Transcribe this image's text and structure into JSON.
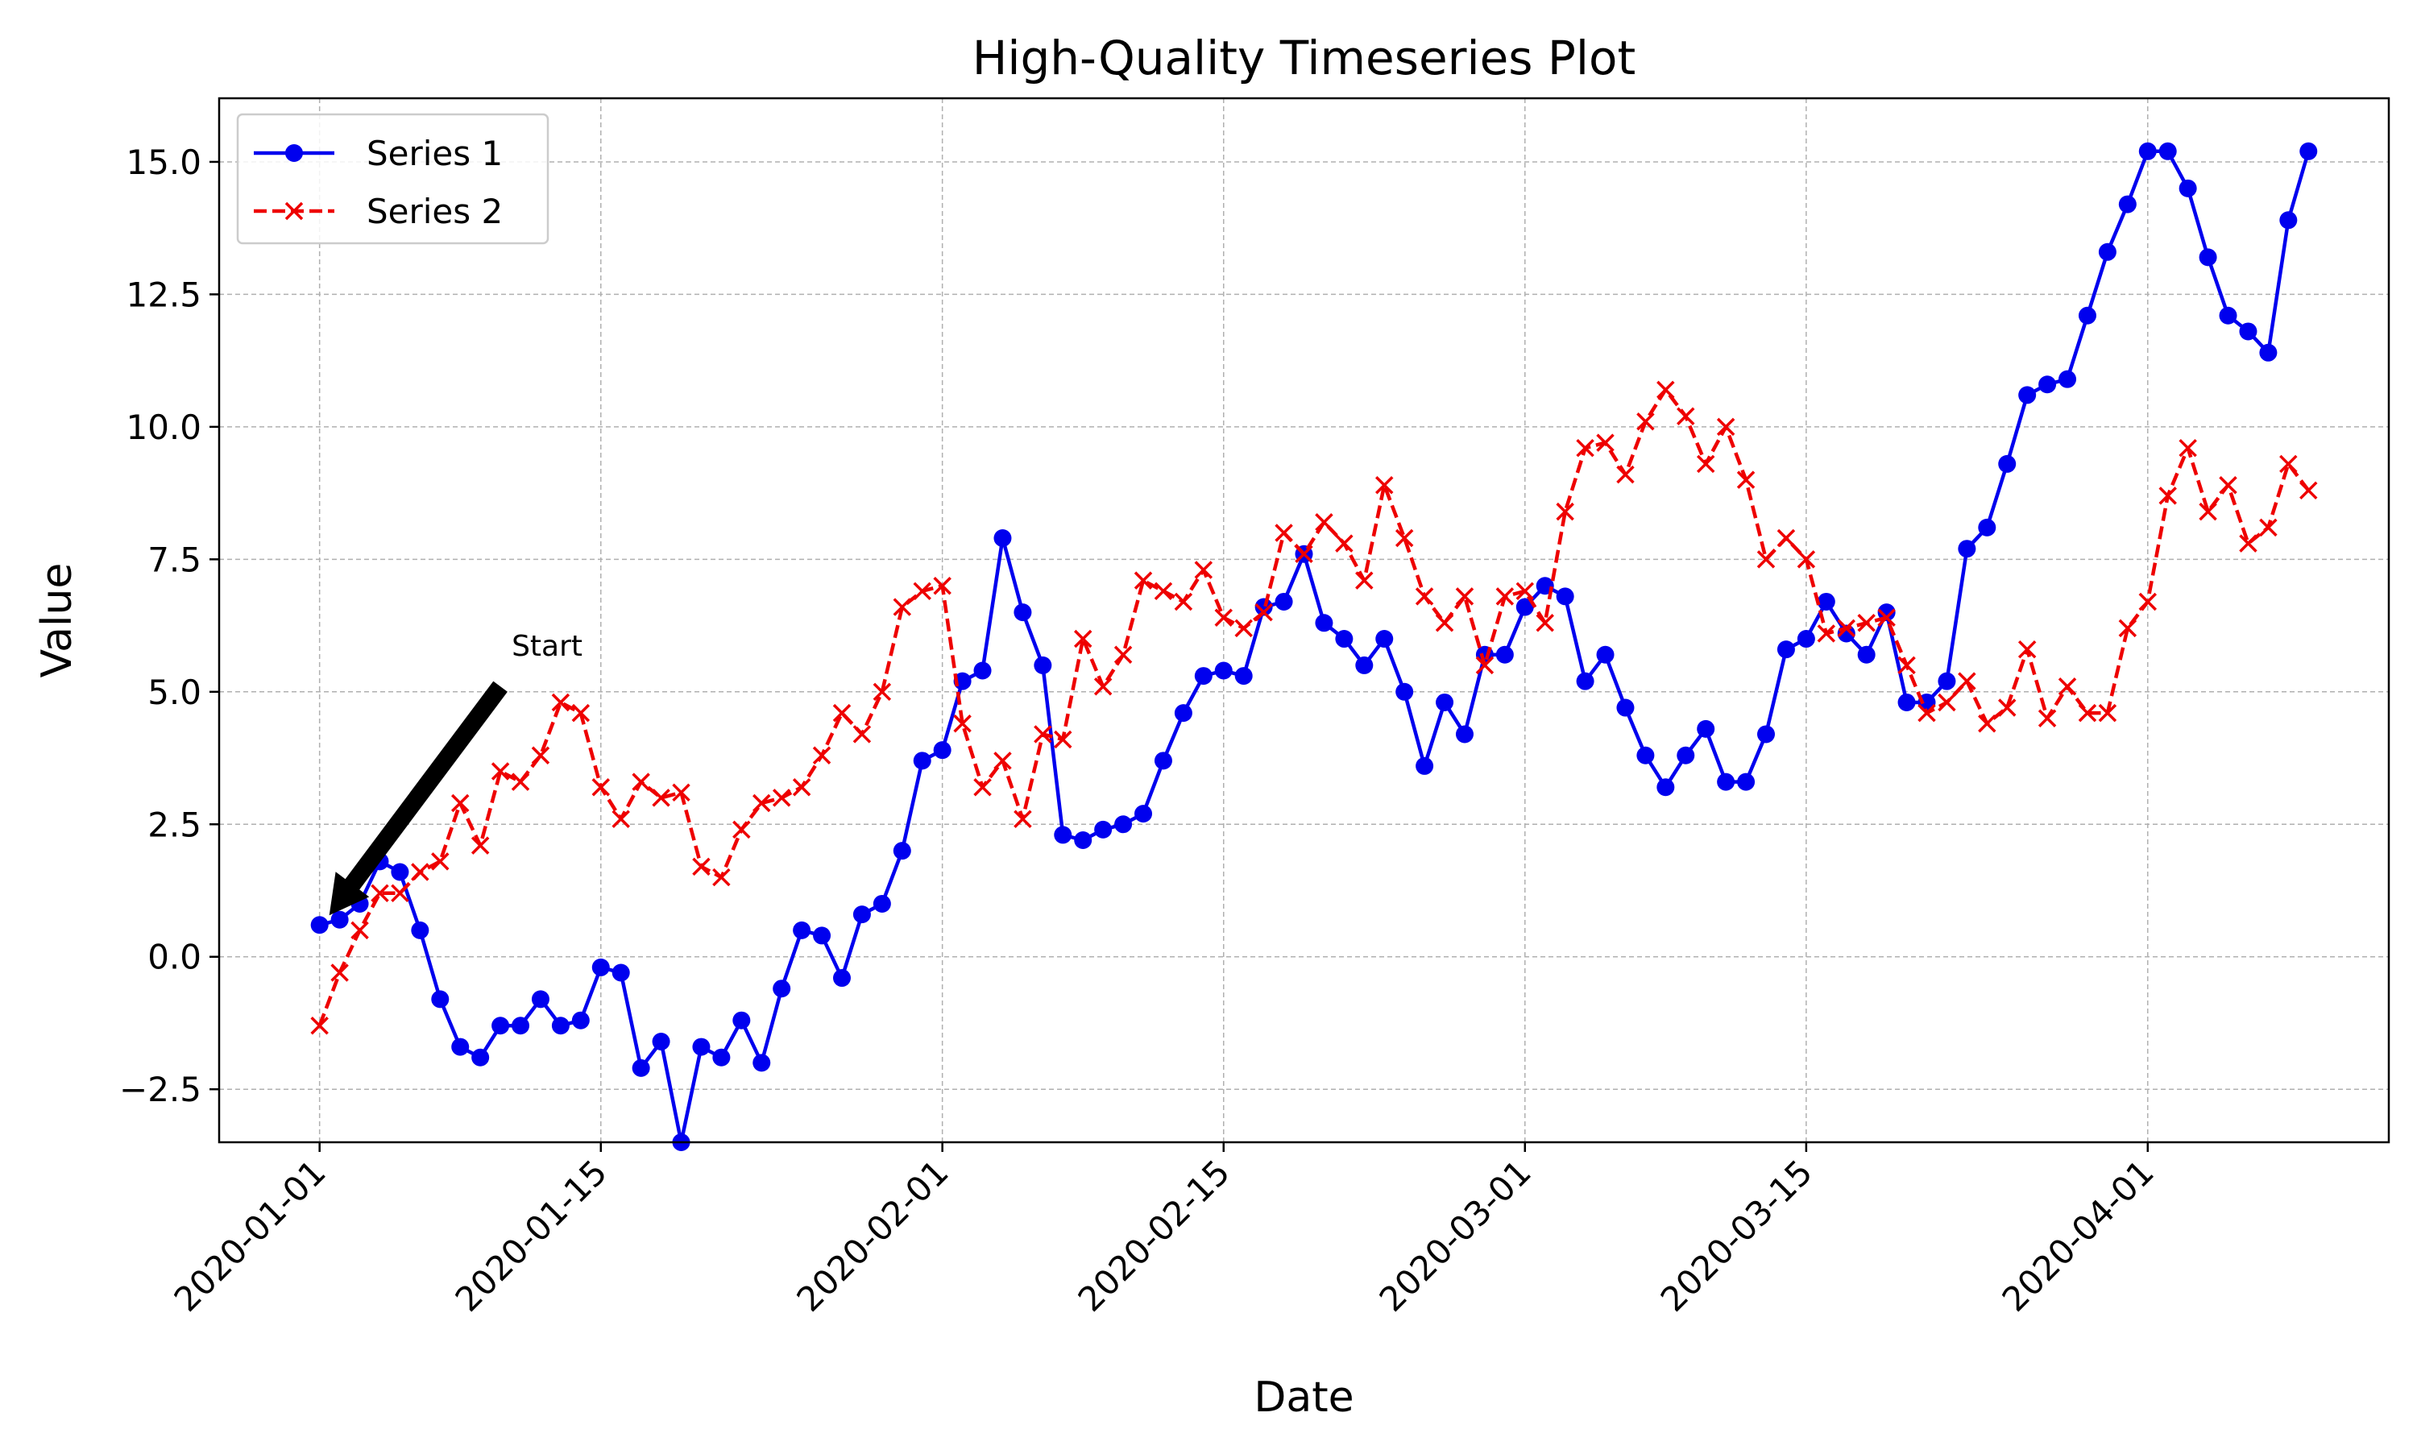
{
  "chart_data": {
    "type": "line",
    "title": "High-Quality Timeseries Plot",
    "xlabel": "Date",
    "ylabel": "Value",
    "x_start": "2020-01-01",
    "x_end": "2020-04-08",
    "xlim": [
      "2019-12-27",
      "2020-04-13"
    ],
    "ylim": [
      -3.5,
      16.2
    ],
    "x_ticks": [
      "2020-01-01",
      "2020-01-15",
      "2020-02-01",
      "2020-02-15",
      "2020-03-01",
      "2020-03-15",
      "2020-04-01"
    ],
    "y_ticks": [
      -2.5,
      0.0,
      2.5,
      5.0,
      7.5,
      10.0,
      12.5,
      15.0
    ],
    "y_tick_labels": [
      "−2.5",
      "0.0",
      "2.5",
      "5.0",
      "7.5",
      "10.0",
      "12.5",
      "15.0"
    ],
    "grid": true,
    "legend_position": "upper-left",
    "annotations": [
      {
        "text": "Start",
        "points_to": {
          "x": "2020-01-01",
          "y": 0.6
        }
      }
    ],
    "series": [
      {
        "name": "Series 1",
        "color": "#0000ee",
        "line_style": "solid",
        "marker": "circle",
        "values": [
          0.6,
          0.7,
          1.0,
          1.8,
          1.6,
          0.5,
          -0.8,
          -1.7,
          -1.9,
          -1.3,
          -1.3,
          -0.8,
          -1.3,
          -1.2,
          -0.2,
          -0.3,
          -2.1,
          -1.6,
          -3.5,
          -1.7,
          -1.9,
          -1.2,
          -2.0,
          -0.6,
          0.5,
          0.4,
          -0.4,
          0.8,
          1.0,
          2.0,
          3.7,
          3.9,
          5.2,
          5.4,
          7.9,
          6.5,
          5.5,
          2.3,
          2.2,
          2.4,
          2.5,
          2.7,
          3.7,
          4.6,
          5.3,
          5.4,
          5.3,
          6.6,
          6.7,
          7.6,
          6.3,
          6.0,
          5.5,
          6.0,
          5.0,
          3.6,
          4.8,
          4.2,
          5.7,
          5.7,
          6.6,
          7.0,
          6.8,
          5.2,
          5.7,
          4.7,
          3.8,
          3.2,
          3.8,
          4.3,
          3.3,
          3.3,
          4.2,
          5.8,
          6.0,
          6.7,
          6.1,
          5.7,
          6.5,
          4.8,
          4.8,
          5.2,
          7.7,
          8.1,
          9.3,
          10.6,
          10.8,
          10.9,
          12.1,
          13.3,
          14.2,
          15.2,
          15.2,
          14.5,
          13.2,
          12.1,
          11.8,
          11.4,
          13.9,
          15.2
        ]
      },
      {
        "name": "Series 2",
        "color": "#ee0000",
        "line_style": "dashed",
        "marker": "x",
        "values": [
          -1.3,
          -0.3,
          0.5,
          1.2,
          1.2,
          1.6,
          1.8,
          2.9,
          2.1,
          3.5,
          3.3,
          3.8,
          4.8,
          4.6,
          3.2,
          2.6,
          3.3,
          3.0,
          3.1,
          1.7,
          1.5,
          2.4,
          2.9,
          3.0,
          3.2,
          3.8,
          4.6,
          4.2,
          5.0,
          6.6,
          6.9,
          7.0,
          4.4,
          3.2,
          3.7,
          2.6,
          4.2,
          4.1,
          6.0,
          5.1,
          5.7,
          7.1,
          6.9,
          6.7,
          7.3,
          6.4,
          6.2,
          6.5,
          8.0,
          7.6,
          8.2,
          7.8,
          7.1,
          8.9,
          7.9,
          6.8,
          6.3,
          6.8,
          5.5,
          6.8,
          6.9,
          6.3,
          8.4,
          9.6,
          9.7,
          9.1,
          10.1,
          10.7,
          10.2,
          9.3,
          10.0,
          9.0,
          7.5,
          7.9,
          7.5,
          6.1,
          6.2,
          6.3,
          6.4,
          5.5,
          4.6,
          4.8,
          5.2,
          4.4,
          4.7,
          5.8,
          4.5,
          5.1,
          4.6,
          4.6,
          6.2,
          6.7,
          8.7,
          9.6,
          8.4,
          8.9,
          7.8,
          8.1,
          9.3,
          8.8
        ]
      }
    ]
  }
}
